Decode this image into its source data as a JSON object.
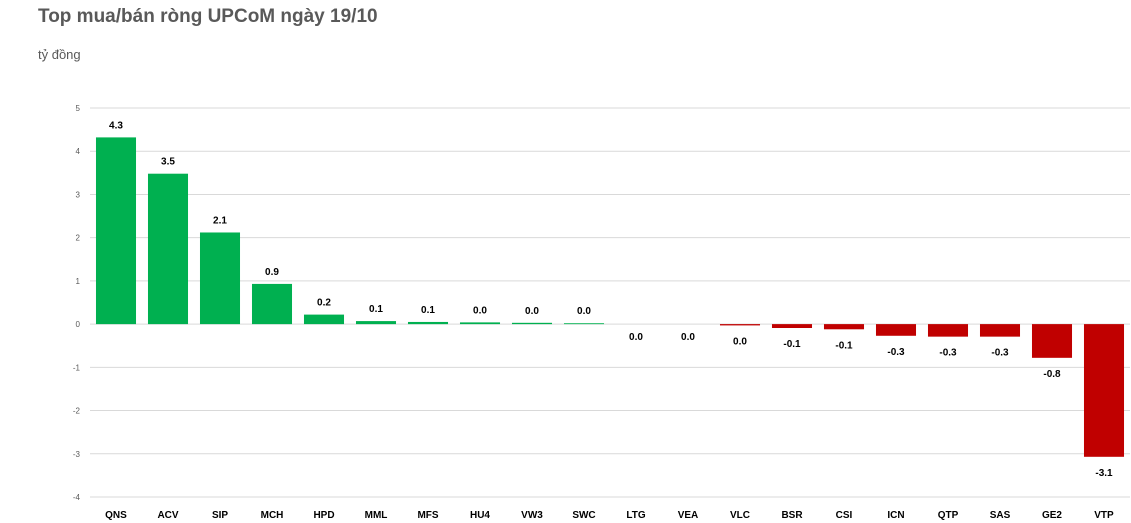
{
  "title": "Top mua/bán ròng UPCoM ngày 19/10",
  "unit_label": "tỷ đồng",
  "colors": {
    "positive": "#00b050",
    "negative": "#c00000",
    "grid": "#d9d9d9"
  },
  "chart_data": {
    "type": "bar",
    "title": "Top mua/bán ròng UPCoM ngày 19/10",
    "ylabel": "tỷ đồng",
    "ylim": [
      -4,
      5
    ],
    "yticks": [
      5,
      4,
      3,
      2,
      1,
      0,
      -1,
      -2,
      -3,
      -4
    ],
    "grid": true,
    "categories": [
      "QNS",
      "ACV",
      "SIP",
      "MCH",
      "HPD",
      "MML",
      "MFS",
      "HU4",
      "VW3",
      "SWC",
      "LTG",
      "VEA",
      "VLC",
      "BSR",
      "CSI",
      "ICN",
      "QTP",
      "SAS",
      "GE2",
      "VTP"
    ],
    "values": [
      4.32,
      3.48,
      2.12,
      0.93,
      0.22,
      0.07,
      0.05,
      0.04,
      0.03,
      0.02,
      0.0,
      0.0,
      -0.03,
      -0.09,
      -0.12,
      -0.27,
      -0.29,
      -0.29,
      -0.78,
      -3.07
    ],
    "labels": [
      "4.3",
      "3.5",
      "2.1",
      "0.9",
      "0.2",
      "0.1",
      "0.1",
      "0.0",
      "0.0",
      "0.0",
      "0.0",
      "0.0",
      "0.0",
      "-0.1",
      "-0.1",
      "-0.3",
      "-0.3",
      "-0.3",
      "-0.8",
      "-3.1"
    ]
  }
}
